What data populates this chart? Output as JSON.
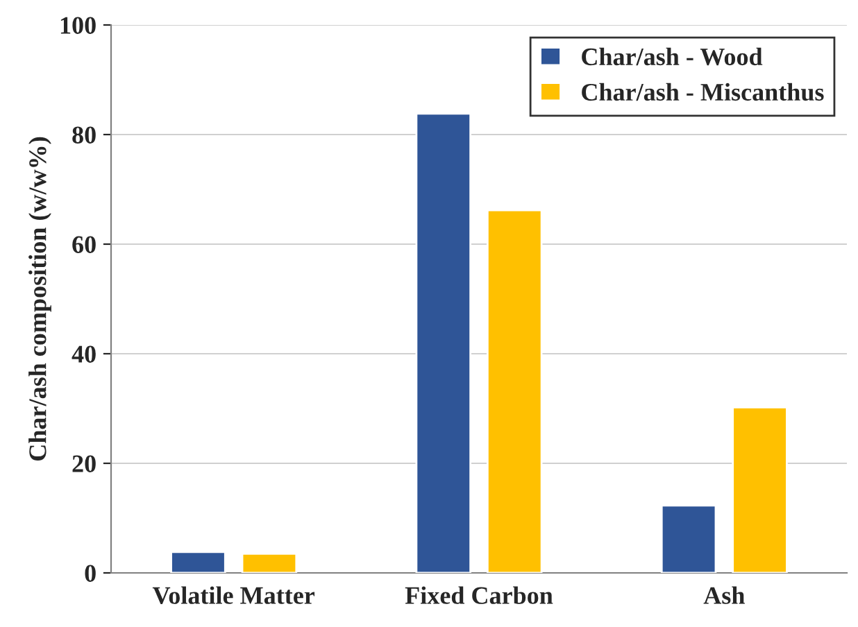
{
  "chart_data": {
    "type": "bar",
    "ylabel": "Char/ash composition (w/w%)",
    "categories": [
      "Volatile Matter",
      "Fixed Carbon",
      "Ash"
    ],
    "series": [
      {
        "name": "Char/ash - Wood",
        "color": "#2f5597",
        "values": [
          3.8,
          83.8,
          12.3
        ]
      },
      {
        "name": "Char/ash - Miscanthus",
        "color": "#ffc000",
        "values": [
          3.5,
          66.2,
          30.2
        ]
      }
    ],
    "ylim": [
      0,
      100
    ],
    "yticks": [
      0,
      20,
      40,
      60,
      80,
      100
    ],
    "grid": "y",
    "legend": "top right"
  }
}
